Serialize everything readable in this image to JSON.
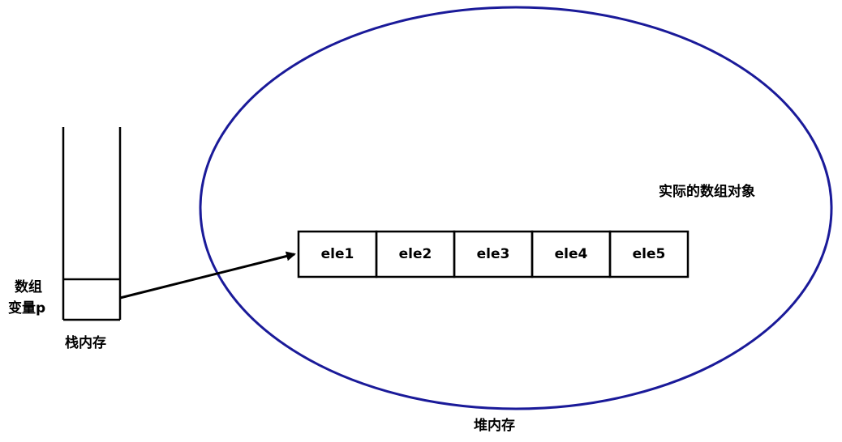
{
  "stack": {
    "label": "栈内存",
    "variable_line1": "数组",
    "variable_line2": "变量p"
  },
  "heap": {
    "label": "堆内存",
    "object_label": "实际的数组对象",
    "ellipse_color": "#1a1a99"
  },
  "array": {
    "elements": [
      "ele1",
      "ele2",
      "ele3",
      "ele4",
      "ele5"
    ]
  }
}
